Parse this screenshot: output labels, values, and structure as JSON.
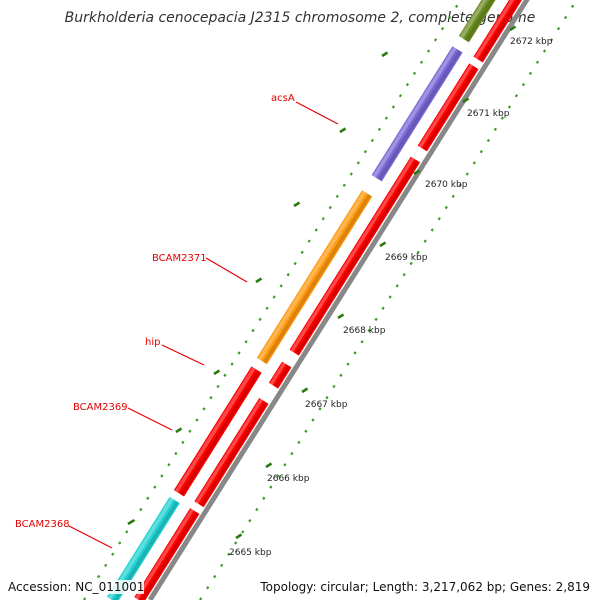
{
  "title": "Burkholderia cenocepacia J2315 chromosome 2, complete genome",
  "accession": "Accession: NC_011001",
  "summary": "Topology: circular; Length: 3,217,062 bp; Genes: 2,819",
  "colors": {
    "gene_label": "#e60000",
    "tick_major": "#2a7a12",
    "tick_minor": "#3a9a22",
    "track_red": "#ff0000",
    "track_purple": "#7b68d6",
    "track_orange": "#ff9a10",
    "track_cyan": "#22d2d2",
    "track_olive": "#6b8e23",
    "backbone": "#888888"
  },
  "scale": {
    "labels": [
      "2665 kbp",
      "2666 kbp",
      "2667 kbp",
      "2668 kbp",
      "2669 kbp",
      "2670 kbp",
      "2671 kbp",
      "2672 kbp"
    ]
  },
  "genes": [
    {
      "name": "acsA",
      "color": "purple"
    },
    {
      "name": "BCAM2371",
      "color": "orange"
    },
    {
      "name": "hip",
      "color": "orange"
    },
    {
      "name": "BCAM2369",
      "color": "red"
    },
    {
      "name": "BCAM2368",
      "color": "cyan"
    }
  ]
}
